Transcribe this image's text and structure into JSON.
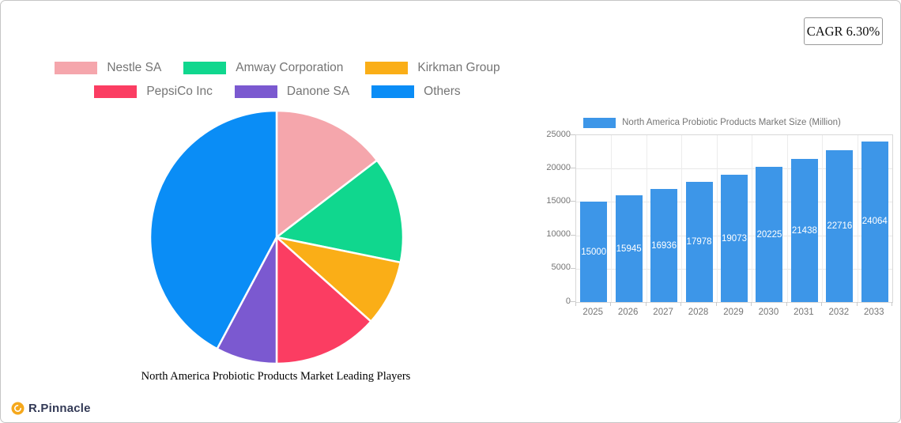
{
  "cagr_badge": {
    "label": "CAGR 6.30%"
  },
  "branding": {
    "logo_text": "R.Pinnacle",
    "logo_color": "#F5A81C",
    "text_color": "#333A56"
  },
  "chart_data": [
    {
      "type": "pie",
      "title": "North America Probiotic Products Market Leading Players",
      "labels": [
        "Nestle SA",
        "Amway Corporation",
        "Kirkman Group",
        "PepsiCo Inc",
        "Danone SA",
        "Others"
      ],
      "values_pct": [
        14.6,
        13.6,
        8.4,
        13.4,
        7.8,
        42.2
      ],
      "colors": [
        "#F5A6AC",
        "#10D78E",
        "#FAAE17",
        "#FB3D62",
        "#7B59D0",
        "#0A8DF6"
      ],
      "legend_position": "top",
      "legend_columns": 3,
      "legend_text_color": "#757575",
      "start_angle_deg": 0,
      "direction": "clockwise"
    },
    {
      "type": "bar",
      "categories": [
        "2025",
        "2026",
        "2027",
        "2028",
        "2029",
        "2030",
        "2031",
        "2032",
        "2033"
      ],
      "series": [
        {
          "name": "North America Probiotic Products Market Size (Million)",
          "values": [
            15000,
            15945,
            16936,
            17978,
            19073,
            20225,
            21438,
            22716,
            24064
          ]
        }
      ],
      "bar_color": "#3D96E8",
      "value_label_color": "#FFFFFF",
      "ylim": [
        0,
        25000
      ],
      "yticks": [
        0,
        5000,
        10000,
        15000,
        20000,
        25000
      ],
      "grid": true,
      "legend_position": "top",
      "axis_text_color": "#757575"
    }
  ]
}
